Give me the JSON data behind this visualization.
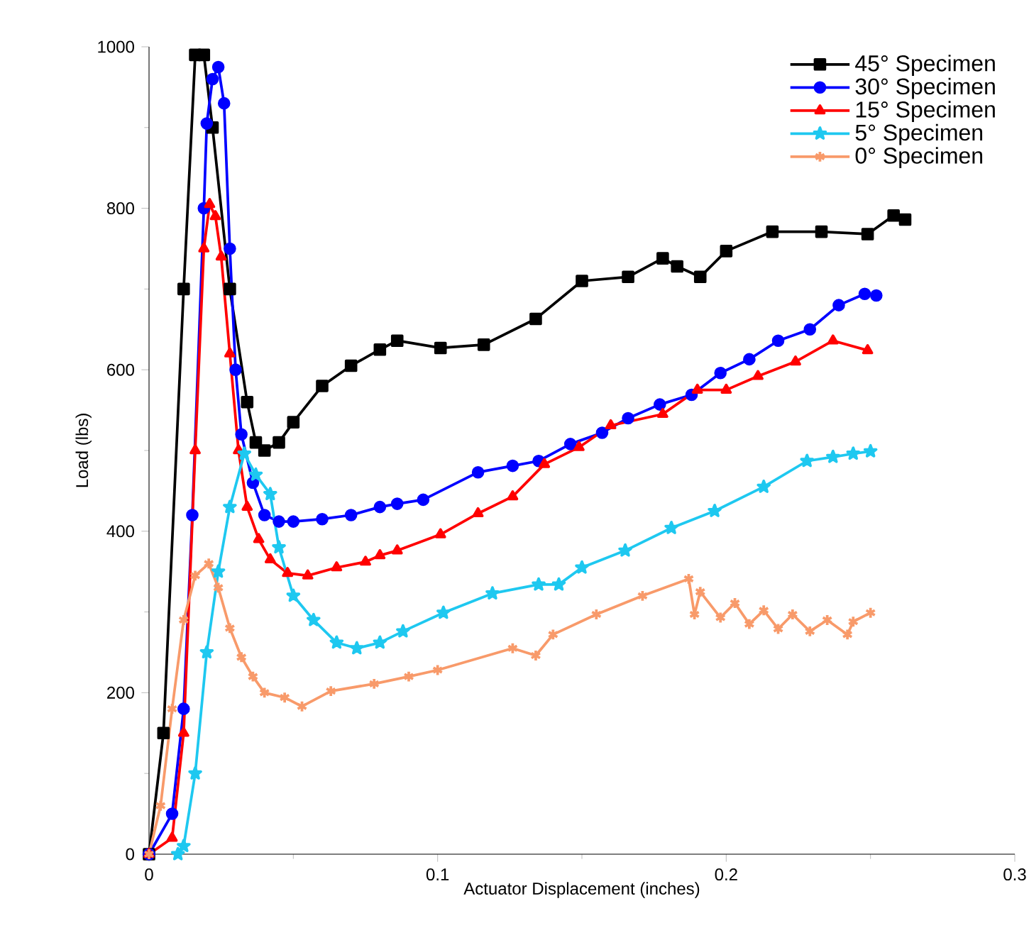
{
  "chart_data": {
    "type": "line",
    "xlabel": "Actuator Displacement (inches)",
    "ylabel": "Load (lbs)",
    "xlim": [
      0,
      0.3
    ],
    "ylim": [
      0,
      1000
    ],
    "xticks": [
      0,
      0.1,
      0.2,
      0.3
    ],
    "yticks": [
      0,
      200,
      400,
      600,
      800,
      1000
    ],
    "legend": "top right",
    "grid": false,
    "series": [
      {
        "name": "45° Specimen",
        "color": "#000000",
        "marker": "square",
        "x": [
          0,
          0.005,
          0.012,
          0.016,
          0.019,
          0.022,
          0.028,
          0.034,
          0.037,
          0.04,
          0.045,
          0.05,
          0.06,
          0.07,
          0.08,
          0.086,
          0.101,
          0.116,
          0.134,
          0.15,
          0.166,
          0.178,
          0.183,
          0.191,
          0.2,
          0.216,
          0.233,
          0.249,
          0.258,
          0.262
        ],
        "values": [
          0,
          150,
          700,
          990,
          990,
          900,
          700,
          560,
          510,
          500,
          510,
          535,
          580,
          605,
          625,
          636,
          627,
          631,
          663,
          710,
          715,
          738,
          728,
          715,
          747,
          771,
          771,
          768,
          791,
          786
        ]
      },
      {
        "name": "30° Specimen",
        "color": "#0000ff",
        "marker": "circle",
        "x": [
          0,
          0.008,
          0.012,
          0.015,
          0.019,
          0.02,
          0.022,
          0.024,
          0.026,
          0.028,
          0.03,
          0.032,
          0.036,
          0.04,
          0.045,
          0.05,
          0.06,
          0.07,
          0.08,
          0.086,
          0.095,
          0.114,
          0.126,
          0.135,
          0.146,
          0.157,
          0.166,
          0.177,
          0.188,
          0.198,
          0.208,
          0.218,
          0.229,
          0.239,
          0.248,
          0.252
        ],
        "values": [
          0,
          50,
          180,
          420,
          800,
          905,
          960,
          975,
          930,
          750,
          600,
          520,
          460,
          420,
          412,
          412,
          415,
          420,
          430,
          434,
          439,
          473,
          481,
          487,
          508,
          522,
          540,
          557,
          569,
          596,
          613,
          636,
          650,
          680,
          694,
          692
        ]
      },
      {
        "name": "15° Specimen",
        "color": "#ff0000",
        "marker": "triangle",
        "x": [
          0,
          0.008,
          0.012,
          0.016,
          0.019,
          0.021,
          0.023,
          0.025,
          0.028,
          0.031,
          0.034,
          0.038,
          0.042,
          0.048,
          0.055,
          0.065,
          0.075,
          0.08,
          0.086,
          0.101,
          0.114,
          0.126,
          0.137,
          0.149,
          0.16,
          0.178,
          0.19,
          0.2,
          0.211,
          0.224,
          0.237,
          0.249
        ],
        "values": [
          0,
          20,
          150,
          500,
          750,
          805,
          790,
          740,
          620,
          500,
          430,
          390,
          365,
          348,
          345,
          355,
          362,
          370,
          376,
          396,
          422,
          443,
          483,
          504,
          531,
          545,
          575,
          575,
          592,
          610,
          636,
          624
        ]
      },
      {
        "name": "5° Specimen",
        "color": "#1ec8f0",
        "marker": "star",
        "x": [
          0.01,
          0.012,
          0.016,
          0.02,
          0.024,
          0.028,
          0.033,
          0.037,
          0.042,
          0.045,
          0.05,
          0.057,
          0.065,
          0.072,
          0.08,
          0.088,
          0.102,
          0.119,
          0.135,
          0.142,
          0.15,
          0.165,
          0.181,
          0.196,
          0.213,
          0.228,
          0.237,
          0.244,
          0.25
        ],
        "values": [
          0,
          10,
          100,
          250,
          350,
          430,
          496,
          470,
          446,
          380,
          320,
          290,
          262,
          255,
          262,
          276,
          299,
          323,
          334,
          334,
          355,
          376,
          404,
          425,
          455,
          487,
          492,
          496,
          499
        ]
      },
      {
        "name": "0° Specimen",
        "color": "#f89a6a",
        "marker": "cross",
        "x": [
          0,
          0.004,
          0.008,
          0.012,
          0.016,
          0.0207,
          0.024,
          0.028,
          0.032,
          0.036,
          0.04,
          0.047,
          0.053,
          0.063,
          0.078,
          0.09,
          0.1,
          0.126,
          0.134,
          0.14,
          0.155,
          0.171,
          0.187,
          0.189,
          0.191,
          0.198,
          0.203,
          0.208,
          0.213,
          0.218,
          0.223,
          0.229,
          0.235,
          0.242,
          0.244,
          0.25
        ],
        "values": [
          0,
          60,
          180,
          290,
          345,
          360,
          330,
          280,
          244,
          220,
          200,
          194,
          183,
          202,
          211,
          220,
          228,
          255,
          246,
          272,
          297,
          320,
          341,
          297,
          325,
          293,
          311,
          285,
          302,
          279,
          297,
          276,
          290,
          272,
          288,
          299
        ]
      }
    ]
  }
}
